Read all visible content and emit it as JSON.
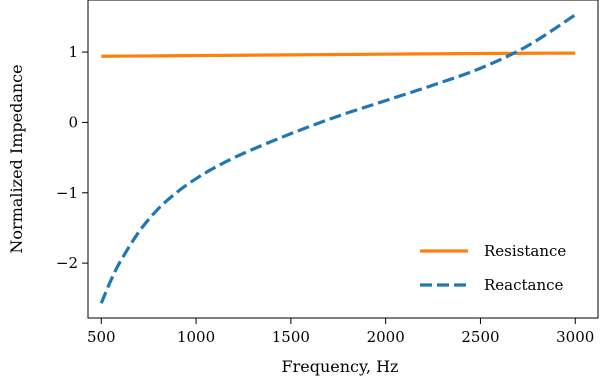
{
  "chart_data": {
    "type": "line",
    "title": "",
    "xlabel": "Frequency, Hz",
    "ylabel": "Normalized Impedance",
    "xlim": [
      430,
      3120
    ],
    "ylim": [
      -2.78,
      1.74
    ],
    "x_ticks": [
      500,
      1000,
      1500,
      2000,
      2500,
      3000
    ],
    "x_tick_labels": [
      "500",
      "1000",
      "1500",
      "2000",
      "2500",
      "3000"
    ],
    "y_ticks": [
      1,
      0,
      -1,
      -2
    ],
    "y_tick_labels": [
      "1",
      "0",
      "−1",
      "−2"
    ],
    "grid": false,
    "legend_position": "lower-right",
    "series": [
      {
        "name": "Resistance",
        "color": "#ff7f0e",
        "style": "solid",
        "x": [
          500,
          750,
          1000,
          1250,
          1500,
          1750,
          2000,
          2250,
          2500,
          2750,
          3000
        ],
        "y": [
          0.94,
          0.945,
          0.95,
          0.955,
          0.96,
          0.965,
          0.97,
          0.975,
          0.98,
          0.983,
          0.985
        ]
      },
      {
        "name": "Reactance",
        "color": "#1f77b4",
        "style": "dashed",
        "x": [
          500,
          550,
          600,
          700,
          800,
          900,
          1000,
          1100,
          1250,
          1500,
          1750,
          2000,
          2250,
          2500,
          2750,
          3000
        ],
        "y": [
          -2.57,
          -2.25,
          -1.98,
          -1.55,
          -1.23,
          -0.99,
          -0.8,
          -0.64,
          -0.44,
          -0.16,
          0.09,
          0.31,
          0.53,
          0.77,
          1.09,
          1.53
        ]
      }
    ]
  }
}
